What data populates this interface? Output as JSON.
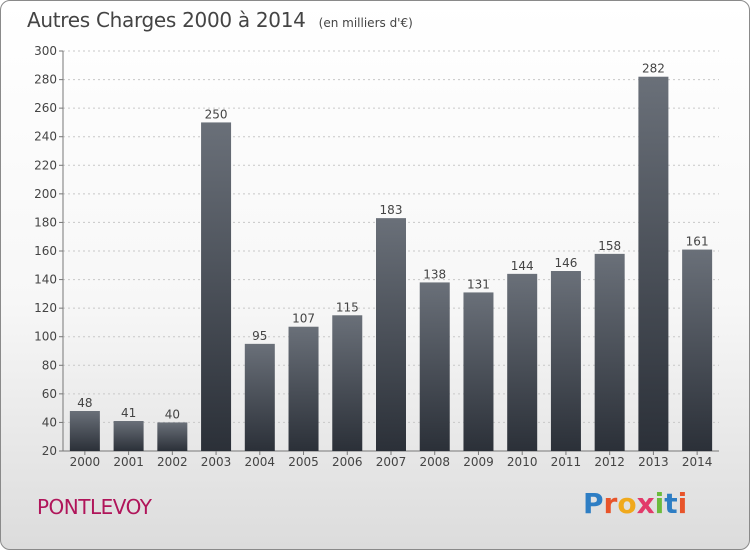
{
  "header": {
    "title": "Autres Charges 2000 à 2014",
    "subtitle": "(en milliers d'€)"
  },
  "footer": {
    "place": "PONTLEVOY",
    "logo_letters": [
      "P",
      "r",
      "o",
      "x",
      "i",
      "t",
      "i"
    ],
    "logo_colors": [
      "#2e7ec4",
      "#e8542a",
      "#f0a91c",
      "#e23a6a",
      "#6cbb3c",
      "#2e7ec4",
      "#e8542a"
    ]
  },
  "colors": {
    "place_text": "#b0155a",
    "bar_top": "#6a7079",
    "bar_bottom": "#2b3038",
    "grid": "#c8c8c8",
    "text": "#444444"
  },
  "chart_data": {
    "type": "bar",
    "title": "Autres Charges 2000 à 2014",
    "subtitle": "(en milliers d'€)",
    "categories": [
      "2000",
      "2001",
      "2002",
      "2003",
      "2004",
      "2005",
      "2006",
      "2007",
      "2008",
      "2009",
      "2010",
      "2011",
      "2012",
      "2013",
      "2014"
    ],
    "values": [
      48,
      41,
      40,
      250,
      95,
      107,
      115,
      183,
      138,
      131,
      144,
      146,
      158,
      282,
      161
    ],
    "ylim": [
      20,
      300
    ],
    "yticks": [
      20,
      40,
      60,
      80,
      100,
      120,
      140,
      160,
      180,
      200,
      220,
      240,
      260,
      280,
      300
    ],
    "grid": true,
    "data_labels": true
  }
}
